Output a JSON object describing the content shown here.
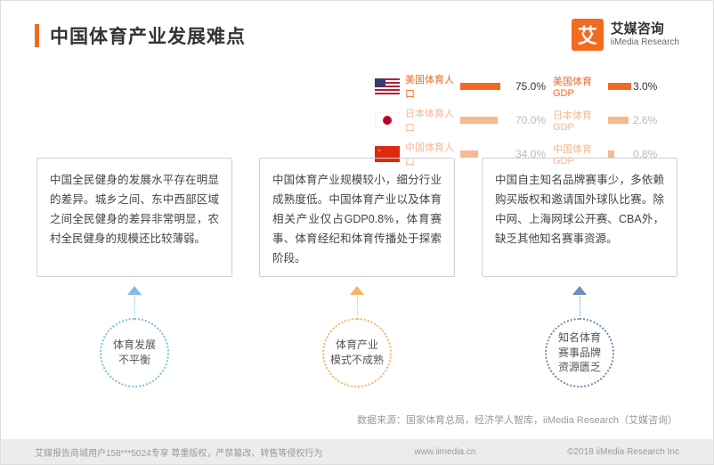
{
  "title": "中国体育产业发展难点",
  "logo": {
    "icon_char": "艾",
    "cn": "艾媒咨询",
    "en": "iiMedia Research"
  },
  "stats": [
    {
      "flag": "us",
      "pop_label": "美国体育人口",
      "pop_value": "75.0%",
      "pop_pct": 75,
      "gdp_label": "美国体育GDP",
      "gdp_value": "3.0%",
      "gdp_pct": 100,
      "faded": false
    },
    {
      "flag": "jp",
      "pop_label": "日本体育人口",
      "pop_value": "70.0%",
      "pop_pct": 70,
      "gdp_label": "日本体育GDP",
      "gdp_value": "2.6%",
      "gdp_pct": 87,
      "faded": true
    },
    {
      "flag": "cn",
      "pop_label": "中国体育人口",
      "pop_value": "34.0%",
      "pop_pct": 34,
      "gdp_label": "中国体育GDP",
      "gdp_value": "0.8%",
      "gdp_pct": 27,
      "faded": true
    }
  ],
  "columns": [
    {
      "body": "中国全民健身的发展水平存在明显的差异。城乡之间、东中西部区域之间全民健身的差异非常明显，农村全民健身的规模还比较薄弱。",
      "circle": "体育发展\n不平衡",
      "accent": "#80bde0"
    },
    {
      "body": "中国体育产业规模较小，细分行业成熟度低。中国体育产业以及体育相关产业仅占GDP0.8%，体育赛事、体育经纪和体育传播处于探索阶段。",
      "circle": "体育产业\n模式不成熟",
      "accent": "#f9b36a"
    },
    {
      "body": "中国自主知名品牌赛事少，多依赖购买版权和邀请国外球队比赛。除中网、上海网球公开赛、CBA外，缺乏其他知名赛事资源。",
      "circle": "知名体育\n赛事品牌\n资源匮乏",
      "accent": "#6a8fb8"
    }
  ],
  "source": "数据来源：国家体育总局，经济学人智库，iiMedia Research（艾媒咨询）",
  "footer": {
    "left": "艾媒报告商城用户158***5024专享 尊重版权，严禁篡改、转售等侵权行为",
    "center": "www.iimedia.cn",
    "right": "©2018   iiMedia Research Inc"
  },
  "colors": {
    "primary": "#f26a21",
    "text": "#333333",
    "muted": "#999999",
    "border": "#d0d0d0",
    "footer_bg": "#ececec"
  }
}
